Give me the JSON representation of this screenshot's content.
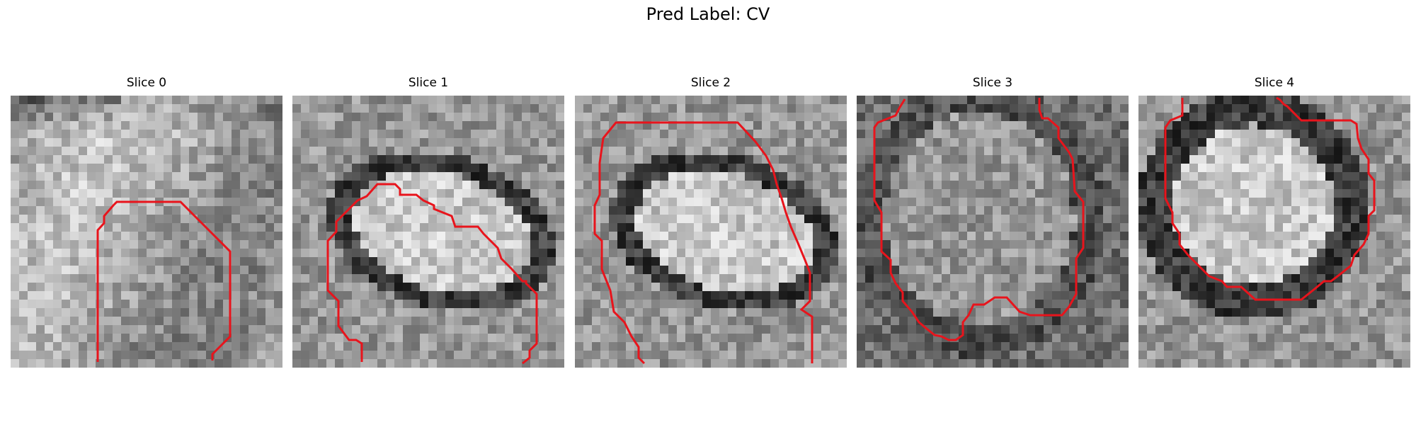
{
  "figure": {
    "title": "Pred Label: CV"
  },
  "contour_color": "#e8141c",
  "panels": [
    {
      "title": "Slice 0",
      "seed": 11,
      "structure": "diffuse-bright-right"
    },
    {
      "title": "Slice 1",
      "seed": 23,
      "structure": "bright-oval-dark-ring"
    },
    {
      "title": "Slice 2",
      "seed": 37,
      "structure": "bright-oval-dark-ring"
    },
    {
      "title": "Slice 3",
      "seed": 41,
      "structure": "medium-center-dark-edges"
    },
    {
      "title": "Slice 4",
      "seed": 53,
      "structure": "bright-center-dark-ring"
    }
  ]
}
